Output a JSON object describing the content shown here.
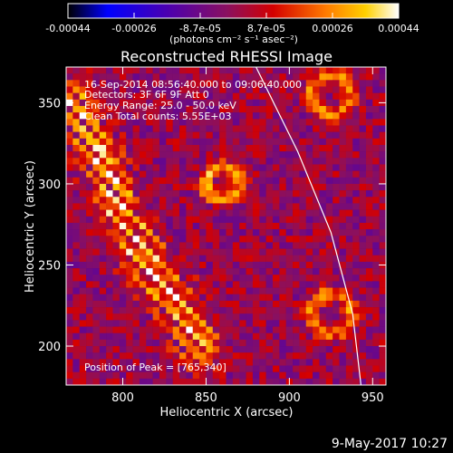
{
  "chart_data": {
    "type": "heatmap",
    "title": "Reconstructed RHESSI Image",
    "xlabel": "Heliocentric X (arcsec)",
    "ylabel": "Heliocentric Y (arcsec)",
    "xlim": [
      766,
      958
    ],
    "ylim": [
      176,
      372
    ],
    "xticks": [
      800,
      850,
      900,
      950
    ],
    "yticks": [
      200,
      250,
      300,
      350
    ],
    "colormap": "black-blue-purple-red-orange-yellow-white",
    "colorbar": {
      "position": "top",
      "range": [
        -0.00044,
        0.00044
      ],
      "ticks": [
        "-0.00044",
        "-0.00026",
        "-8.7e-05",
        "8.7e-05",
        "0.00026",
        "0.00044"
      ],
      "label": "(photons cm⁻² s⁻¹ asec⁻²)"
    },
    "annotations": [
      "16-Sep-2014 08:56:40.000 to 09:06:40.000",
      "Detectors: 3F 6F 9F  Att 0",
      "Energy Range: 25.0 - 50.0 keV",
      "Clean    Total counts: 5.55E+03"
    ],
    "peak_label": "Position of Peak = [765,340]",
    "peak": [
      765,
      340
    ],
    "limb_curve": [
      [
        880,
        372
      ],
      [
        905,
        320
      ],
      [
        925,
        270
      ],
      [
        938,
        220
      ],
      [
        943,
        176
      ]
    ],
    "features": [
      {
        "name": "left-ring-band",
        "path": [
          [
            770,
            350
          ],
          [
            785,
            320
          ],
          [
            800,
            280
          ],
          [
            815,
            250
          ],
          [
            835,
            220
          ],
          [
            845,
            200
          ]
        ],
        "value": 0.00044,
        "sigma": 9
      },
      {
        "name": "center-ring",
        "x": 860,
        "y": 300,
        "r": 10,
        "value": 0.0003
      },
      {
        "name": "top-right-ring",
        "x": 925,
        "y": 355,
        "r": 12,
        "value": 0.00026
      },
      {
        "name": "lower-right-ring",
        "x": 925,
        "y": 220,
        "r": 12,
        "value": 0.00026
      }
    ]
  },
  "timestamp": "9-May-2017 10:27"
}
